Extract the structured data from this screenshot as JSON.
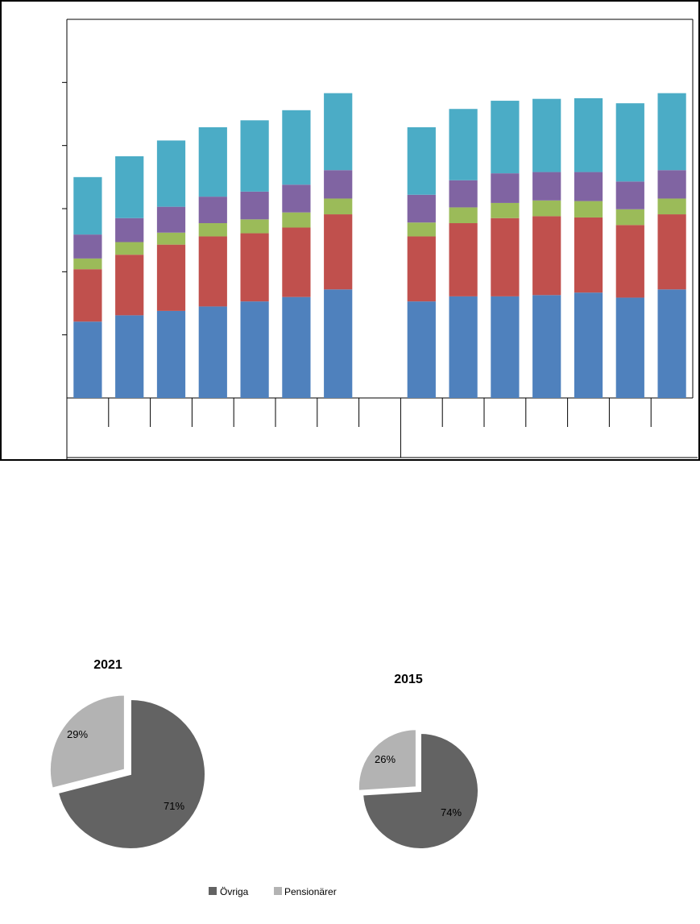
{
  "chart_data": [
    {
      "type": "bar",
      "stacked": true,
      "title": "",
      "xlabel": "",
      "ylabel": "",
      "ylim": [
        0,
        6
      ],
      "y_ticks": [
        0,
        1,
        2,
        3,
        4,
        5
      ],
      "tick_labels_visible": false,
      "groups": [
        {
          "name": "",
          "slots": 7
        },
        {
          "name": "",
          "slots": 7
        }
      ],
      "categories": [
        "",
        "",
        "",
        "",
        "",
        "",
        "",
        "",
        "",
        "",
        "",
        "",
        "",
        ""
      ],
      "series": [
        {
          "color": "#4f81bd",
          "values": [
            1.21,
            1.31,
            1.38,
            1.45,
            1.53,
            1.6,
            1.72,
            1.53,
            1.61,
            1.61,
            1.63,
            1.67,
            1.59,
            1.72
          ]
        },
        {
          "color": "#c0504d",
          "values": [
            0.83,
            0.96,
            1.05,
            1.11,
            1.08,
            1.1,
            1.19,
            1.03,
            1.16,
            1.24,
            1.25,
            1.19,
            1.15,
            1.19
          ]
        },
        {
          "color": "#9bbb59",
          "values": [
            0.17,
            0.2,
            0.19,
            0.21,
            0.22,
            0.24,
            0.25,
            0.22,
            0.25,
            0.24,
            0.25,
            0.26,
            0.25,
            0.25
          ]
        },
        {
          "color": "#8064a2",
          "values": [
            0.38,
            0.38,
            0.41,
            0.42,
            0.44,
            0.44,
            0.45,
            0.44,
            0.43,
            0.47,
            0.45,
            0.46,
            0.44,
            0.45
          ]
        },
        {
          "color": "#4bacc6",
          "values": [
            0.91,
            0.98,
            1.05,
            1.1,
            1.13,
            1.18,
            1.22,
            1.07,
            1.13,
            1.15,
            1.16,
            1.17,
            1.24,
            1.22
          ]
        }
      ],
      "grid": false,
      "legend": "none"
    },
    {
      "type": "pie",
      "title": "2021",
      "slices": [
        {
          "name": "Övriga",
          "value": 71,
          "label": "71%",
          "color": "#636363"
        },
        {
          "name": "Pensionärer",
          "value": 29,
          "label": "29%",
          "color": "#b3b3b3"
        }
      ]
    },
    {
      "type": "pie",
      "title": "2015",
      "slices": [
        {
          "name": "Övriga",
          "value": 74,
          "label": "74%",
          "color": "#636363"
        },
        {
          "name": "Pensionärer",
          "value": 26,
          "label": "26%",
          "color": "#b3b3b3"
        }
      ]
    }
  ],
  "legend": {
    "items": [
      {
        "label": "Övriga",
        "color": "#636363"
      },
      {
        "label": "Pensionärer",
        "color": "#b3b3b3"
      }
    ]
  }
}
